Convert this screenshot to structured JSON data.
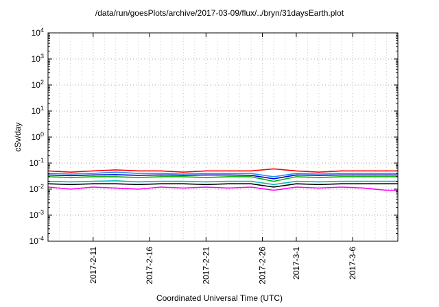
{
  "chart_data": {
    "type": "line",
    "title": "/data/run/goesPlots/archive/2017-03-09/flux/../bryn/31daysEarth.plot",
    "xlabel": "Coordinated Universal Time (UTC)",
    "ylabel": "cSv/day",
    "yscale": "log",
    "ylim": [
      0.0001,
      10000
    ],
    "xlim": [
      "2017-02-07",
      "2017-03-10"
    ],
    "grid": true,
    "y_ticks": [
      {
        "value": 0.0001,
        "base": "10",
        "exp": "-4"
      },
      {
        "value": 0.001,
        "base": "10",
        "exp": "-3"
      },
      {
        "value": 0.01,
        "base": "10",
        "exp": "-2"
      },
      {
        "value": 0.1,
        "base": "10",
        "exp": "-1"
      },
      {
        "value": 1,
        "base": "10",
        "exp": "0"
      },
      {
        "value": 10,
        "base": "10",
        "exp": "1"
      },
      {
        "value": 100,
        "base": "10",
        "exp": "2"
      },
      {
        "value": 1000,
        "base": "10",
        "exp": "3"
      },
      {
        "value": 10000,
        "base": "10",
        "exp": "4"
      }
    ],
    "x_ticks": [
      {
        "date": "2017-02-11",
        "label": "2017-2-11"
      },
      {
        "date": "2017-02-16",
        "label": "2017-2-16"
      },
      {
        "date": "2017-02-21",
        "label": "2017-2-21"
      },
      {
        "date": "2017-02-26",
        "label": "2017-2-26"
      },
      {
        "date": "2017-03-01",
        "label": "2017-3-1"
      },
      {
        "date": "2017-03-06",
        "label": "2017-3-6"
      }
    ],
    "series": [
      {
        "color": "#ff0000",
        "x": [
          "2017-02-07",
          "2017-02-09",
          "2017-02-11",
          "2017-02-13",
          "2017-02-15",
          "2017-02-17",
          "2017-02-19",
          "2017-02-21",
          "2017-02-23",
          "2017-02-25",
          "2017-02-27",
          "2017-03-01",
          "2017-03-03",
          "2017-03-05",
          "2017-03-07",
          "2017-03-09",
          "2017-03-10"
        ],
        "y": [
          0.05,
          0.045,
          0.05,
          0.055,
          0.05,
          0.05,
          0.045,
          0.05,
          0.05,
          0.05,
          0.06,
          0.05,
          0.045,
          0.05,
          0.05,
          0.05,
          0.05
        ]
      },
      {
        "color": "#00aa00",
        "x": [
          "2017-02-07",
          "2017-02-09",
          "2017-02-11",
          "2017-02-13",
          "2017-02-15",
          "2017-02-17",
          "2017-02-19",
          "2017-02-21",
          "2017-02-23",
          "2017-02-25",
          "2017-02-27",
          "2017-03-01",
          "2017-03-03",
          "2017-03-05",
          "2017-03-07",
          "2017-03-09",
          "2017-03-10"
        ],
        "y": [
          0.03,
          0.028,
          0.03,
          0.03,
          0.028,
          0.03,
          0.03,
          0.028,
          0.03,
          0.03,
          0.02,
          0.03,
          0.028,
          0.03,
          0.03,
          0.03,
          0.03
        ]
      },
      {
        "color": "#0000cc",
        "x": [
          "2017-02-07",
          "2017-02-09",
          "2017-02-11",
          "2017-02-13",
          "2017-02-15",
          "2017-02-17",
          "2017-02-19",
          "2017-02-21",
          "2017-02-23",
          "2017-02-25",
          "2017-02-27",
          "2017-03-01",
          "2017-03-03",
          "2017-03-05",
          "2017-03-07",
          "2017-03-09",
          "2017-03-10"
        ],
        "y": [
          0.035,
          0.033,
          0.035,
          0.036,
          0.034,
          0.035,
          0.034,
          0.035,
          0.035,
          0.034,
          0.025,
          0.035,
          0.034,
          0.035,
          0.035,
          0.035,
          0.035
        ]
      },
      {
        "color": "#ff00ff",
        "x": [
          "2017-02-07",
          "2017-02-09",
          "2017-02-11",
          "2017-02-13",
          "2017-02-15",
          "2017-02-17",
          "2017-02-19",
          "2017-02-21",
          "2017-02-23",
          "2017-02-25",
          "2017-02-27",
          "2017-03-01",
          "2017-03-03",
          "2017-03-05",
          "2017-03-07",
          "2017-03-09",
          "2017-03-10"
        ],
        "y": [
          0.012,
          0.01,
          0.012,
          0.011,
          0.01,
          0.012,
          0.011,
          0.012,
          0.011,
          0.012,
          0.009,
          0.012,
          0.011,
          0.012,
          0.011,
          0.009,
          0.009
        ]
      },
      {
        "color": "#00bbbb",
        "x": [
          "2017-02-07",
          "2017-02-09",
          "2017-02-11",
          "2017-02-13",
          "2017-02-15",
          "2017-02-17",
          "2017-02-19",
          "2017-02-21",
          "2017-02-23",
          "2017-02-25",
          "2017-02-27",
          "2017-03-01",
          "2017-03-03",
          "2017-03-05",
          "2017-03-07",
          "2017-03-09",
          "2017-03-10"
        ],
        "y": [
          0.02,
          0.019,
          0.02,
          0.021,
          0.019,
          0.02,
          0.02,
          0.019,
          0.02,
          0.02,
          0.015,
          0.02,
          0.019,
          0.02,
          0.02,
          0.02,
          0.02
        ]
      },
      {
        "color": "#000000",
        "x": [
          "2017-02-07",
          "2017-02-09",
          "2017-02-11",
          "2017-02-13",
          "2017-02-15",
          "2017-02-17",
          "2017-02-19",
          "2017-02-21",
          "2017-02-23",
          "2017-02-25",
          "2017-02-27",
          "2017-03-01",
          "2017-03-03",
          "2017-03-05",
          "2017-03-07",
          "2017-03-09",
          "2017-03-10"
        ],
        "y": [
          0.016,
          0.015,
          0.016,
          0.016,
          0.015,
          0.016,
          0.016,
          0.015,
          0.016,
          0.016,
          0.012,
          0.016,
          0.015,
          0.016,
          0.016,
          0.016,
          0.016
        ]
      },
      {
        "color": "#1e90ff",
        "x": [
          "2017-02-07",
          "2017-02-09",
          "2017-02-11",
          "2017-02-13",
          "2017-02-15",
          "2017-02-17",
          "2017-02-19",
          "2017-02-21",
          "2017-02-23",
          "2017-02-25",
          "2017-02-27",
          "2017-03-01",
          "2017-03-03",
          "2017-03-05",
          "2017-03-07",
          "2017-03-09",
          "2017-03-10"
        ],
        "y": [
          0.04,
          0.038,
          0.04,
          0.045,
          0.04,
          0.04,
          0.038,
          0.04,
          0.04,
          0.04,
          0.03,
          0.04,
          0.038,
          0.04,
          0.04,
          0.04,
          0.04
        ]
      }
    ]
  }
}
